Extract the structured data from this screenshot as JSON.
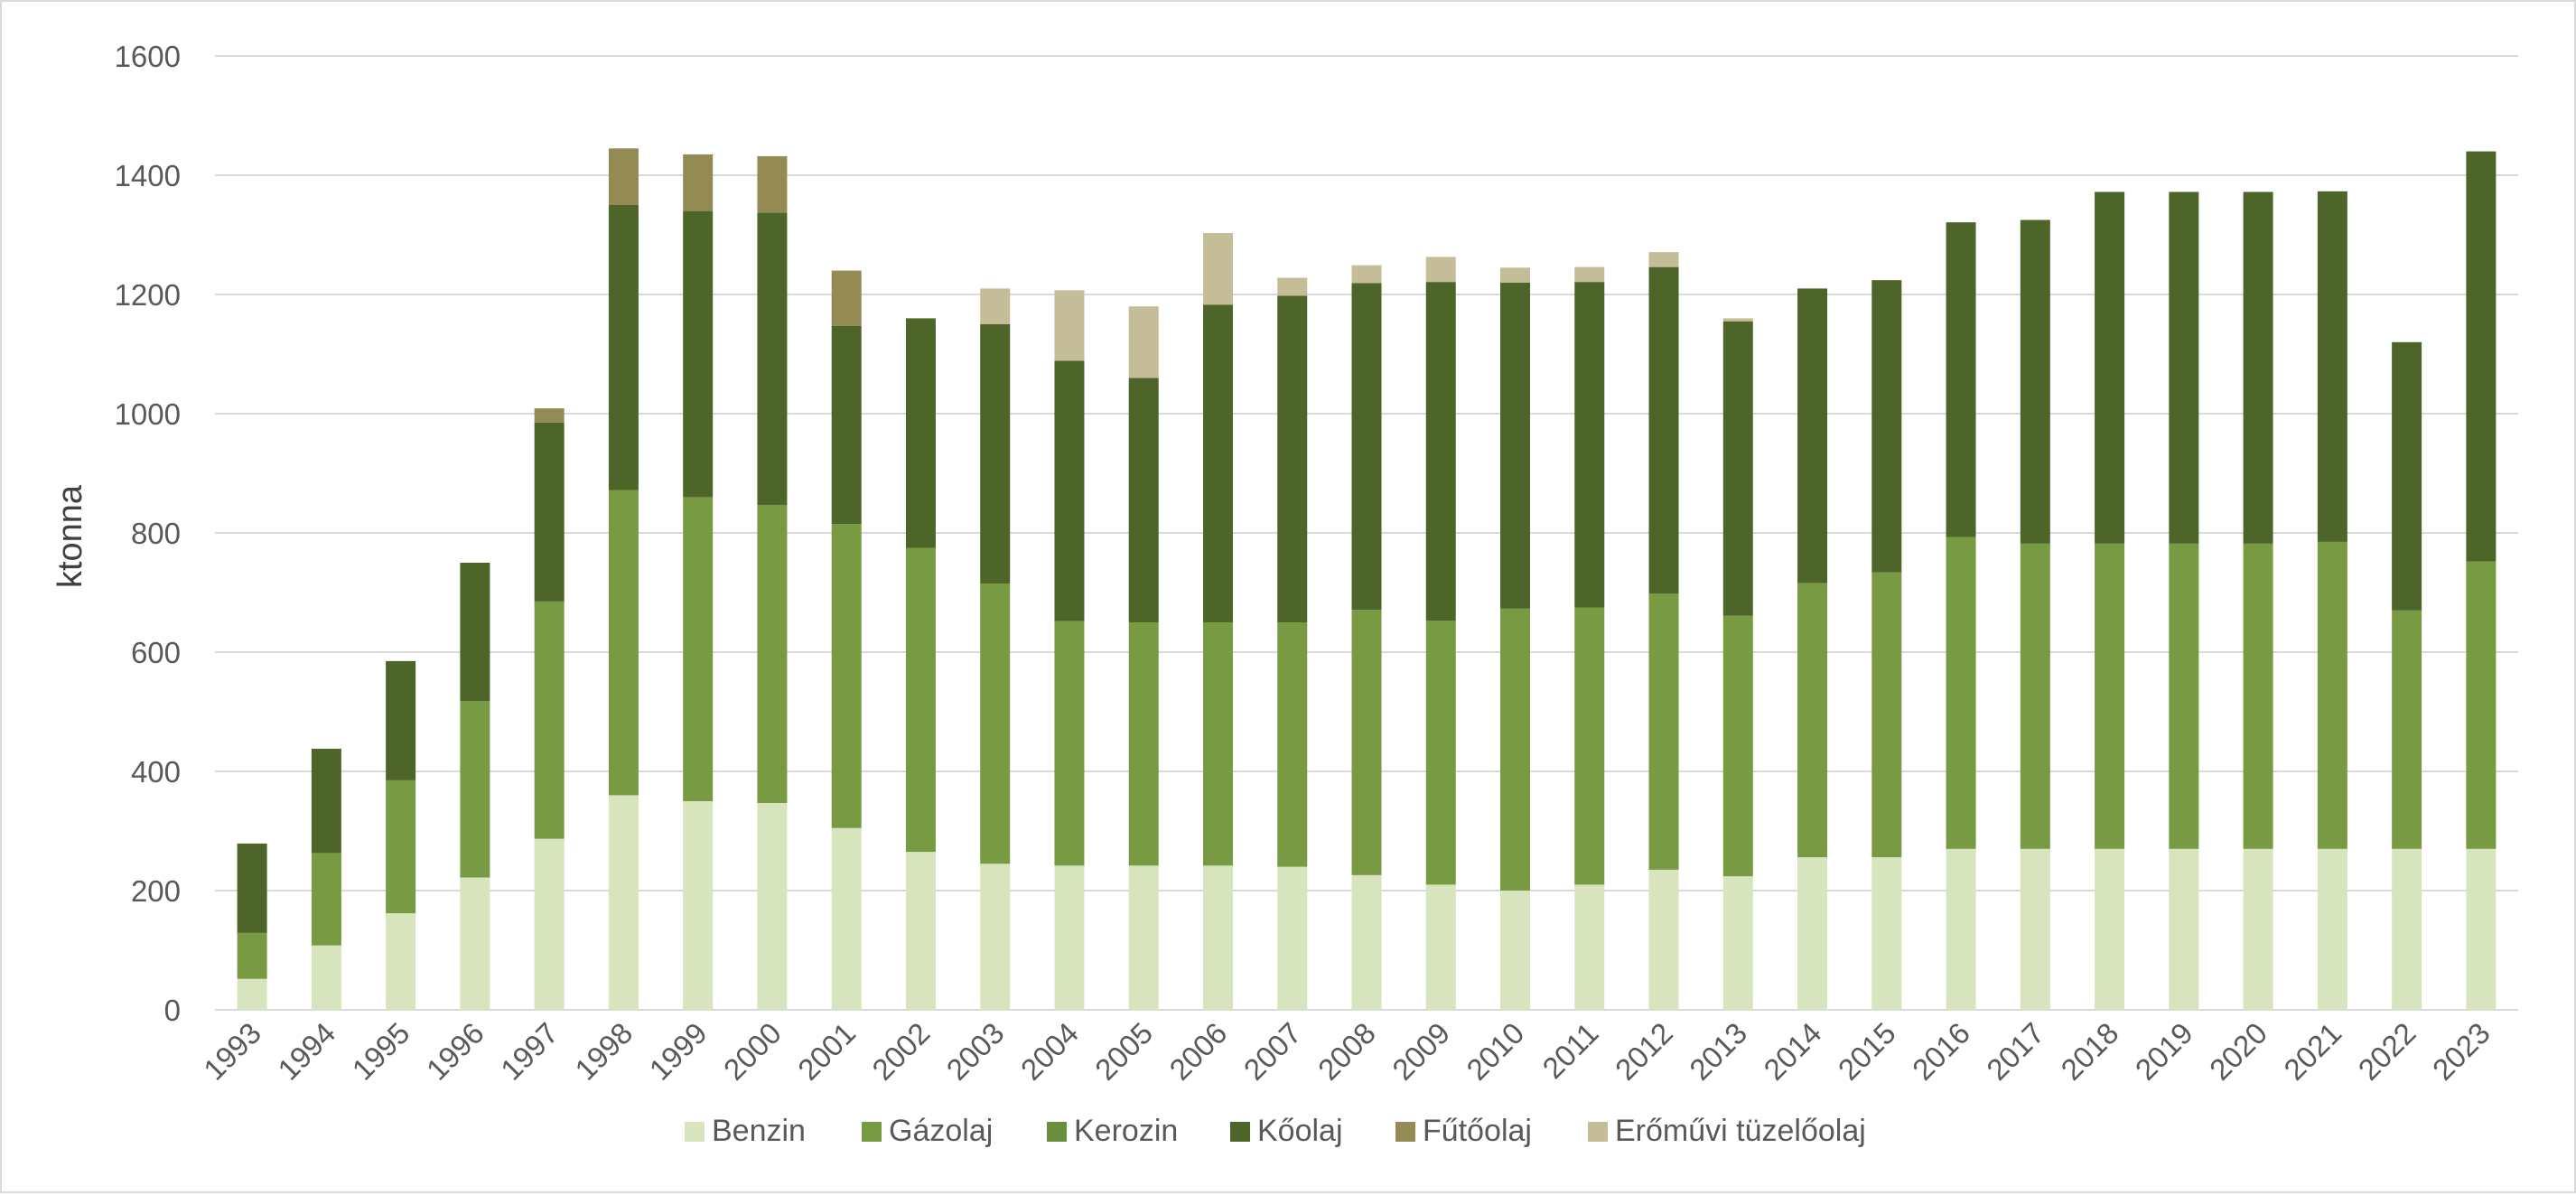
{
  "chart_data": {
    "type": "bar",
    "stacked": true,
    "title": "",
    "xlabel": "",
    "ylabel": "ktonna",
    "ylim": [
      0,
      1600
    ],
    "yticks": [
      "0",
      "200",
      "400",
      "600",
      "800",
      "1000",
      "1200",
      "1400",
      "1600"
    ],
    "grid": true,
    "legend_position": "bottom",
    "categories": [
      "1993",
      "1994",
      "1995",
      "1996",
      "1997",
      "1998",
      "1999",
      "2000",
      "2001",
      "2002",
      "2003",
      "2004",
      "2005",
      "2006",
      "2007",
      "2008",
      "2009",
      "2010",
      "2011",
      "2012",
      "2013",
      "2014",
      "2015",
      "2016",
      "2017",
      "2018",
      "2019",
      "2020",
      "2021",
      "2022",
      "2023"
    ],
    "series": [
      {
        "name": "Benzin",
        "color": "#d7e4bd",
        "values": [
          52,
          108,
          162,
          222,
          287,
          360,
          350,
          347,
          305,
          265,
          245,
          242,
          242,
          242,
          240,
          226,
          210,
          200,
          210,
          235,
          224,
          256,
          256,
          270,
          270,
          270,
          270,
          270,
          270,
          270,
          270
        ]
      },
      {
        "name": "Gázolaj",
        "color": "#779a43",
        "values": [
          77,
          155,
          223,
          296,
          398,
          512,
          510,
          500,
          510,
          510,
          470,
          410,
          408,
          408,
          410,
          445,
          443,
          473,
          465,
          463,
          437,
          460,
          478,
          523,
          512,
          512,
          512,
          512,
          515,
          400,
          482
        ]
      },
      {
        "name": "Kerozin",
        "color": "#6b8e3c",
        "values": [
          0,
          0,
          0,
          0,
          0,
          0,
          0,
          0,
          0,
          0,
          0,
          0,
          0,
          0,
          0,
          0,
          0,
          0,
          0,
          0,
          0,
          0,
          0,
          0,
          0,
          0,
          0,
          0,
          0,
          0,
          0
        ]
      },
      {
        "name": "Kőolaj",
        "color": "#4e6529",
        "values": [
          150,
          175,
          200,
          232,
          300,
          478,
          480,
          490,
          332,
          385,
          435,
          437,
          410,
          533,
          548,
          548,
          568,
          547,
          546,
          548,
          494,
          494,
          490,
          528,
          543,
          590,
          590,
          590,
          588,
          450,
          688
        ]
      },
      {
        "name": "Fűtőolaj",
        "color": "#948a54",
        "values": [
          0,
          0,
          0,
          0,
          24,
          95,
          95,
          95,
          93,
          0,
          0,
          0,
          0,
          0,
          0,
          0,
          0,
          0,
          0,
          0,
          0,
          0,
          0,
          0,
          0,
          0,
          0,
          0,
          0,
          0,
          0
        ]
      },
      {
        "name": "Erőművi tüzelőolaj",
        "color": "#c4bd97",
        "values": [
          0,
          0,
          0,
          0,
          0,
          0,
          0,
          0,
          0,
          0,
          60,
          118,
          120,
          120,
          30,
          30,
          42,
          25,
          25,
          25,
          5,
          0,
          0,
          0,
          0,
          0,
          0,
          0,
          0,
          0,
          0
        ]
      }
    ]
  },
  "colors": {
    "grid": "#d9d9d9",
    "tick_text": "#595959",
    "axis_title_text": "#404040"
  }
}
